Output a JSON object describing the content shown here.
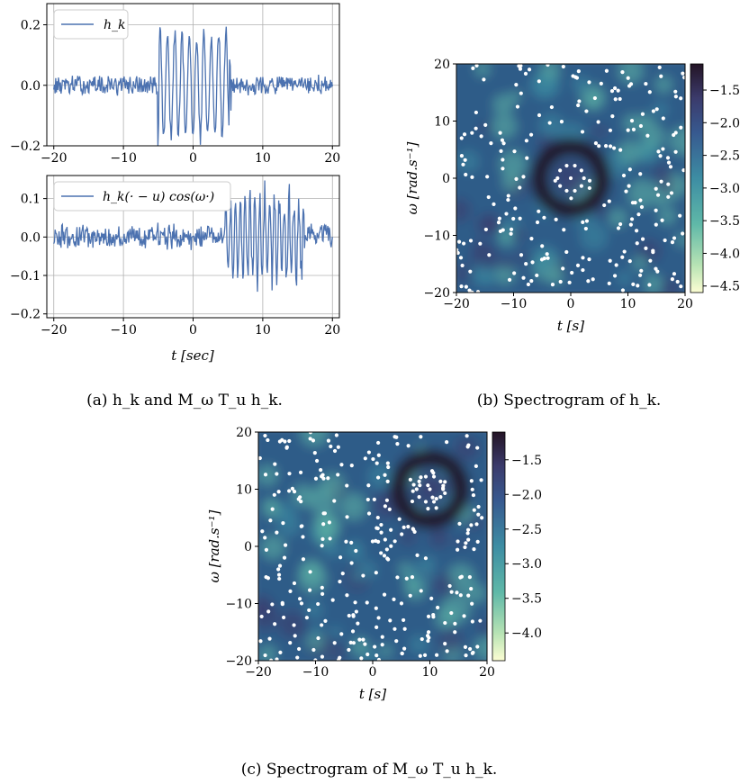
{
  "chart_data": [
    {
      "id": "a_top",
      "type": "line",
      "legend": "h_k",
      "legend_placement": "top-left",
      "series": [
        {
          "name": "h_k",
          "color": "#4c72b0"
        }
      ],
      "xlim": [
        -21,
        21
      ],
      "ylim": [
        -0.2,
        0.27
      ],
      "xticks": [
        -20,
        -10,
        0,
        10,
        20
      ],
      "yticks": [
        -0.2,
        0.0,
        0.2
      ],
      "ytick_labels": [
        "−0.2",
        "0.0",
        "0.2"
      ],
      "grid": true,
      "signal": {
        "noise_amplitude": 0.025,
        "wave_start": -5,
        "wave_end": 5.5,
        "wave_amplitude": 0.17,
        "wave_period": 1.05,
        "spike_left": -5.0,
        "spike_right": 5.3
      }
    },
    {
      "id": "a_bottom",
      "type": "line",
      "legend": "h_k(· − u) cos(ω·)",
      "legend_placement": "top-left",
      "series": [
        {
          "name": "h_k(· − u) cos(ω·)",
          "color": "#4c72b0"
        }
      ],
      "xlim": [
        -21,
        21
      ],
      "ylim": [
        -0.21,
        0.16
      ],
      "xticks": [
        -20,
        -10,
        0,
        10,
        20
      ],
      "yticks": [
        -0.2,
        -0.1,
        0.0,
        0.1
      ],
      "ytick_labels": [
        "−0.2",
        "−0.1",
        "0.0",
        "0.1"
      ],
      "xlabel": "t [sec]",
      "grid": true,
      "signal": {
        "noise_amplitude": 0.025,
        "wave_start": 4.5,
        "wave_end": 16,
        "wave_amplitude": 0.13,
        "wave_period": 0.7
      }
    },
    {
      "id": "b",
      "type": "heatmap",
      "title": "",
      "xlim": [
        -20,
        20
      ],
      "ylim": [
        -20,
        20
      ],
      "xticks": [
        -20,
        -10,
        0,
        10,
        20
      ],
      "yticks": [
        -20,
        -10,
        0,
        10,
        20
      ],
      "xlabel": "t [s]",
      "ylabel": "ω [rad.s⁻¹]",
      "colorbar": {
        "ticks": [
          -1.5,
          -2.0,
          -2.5,
          -3.0,
          -3.5,
          -4.0,
          -4.5
        ],
        "labels": [
          "−1.5",
          "−2.0",
          "−2.5",
          "−3.0",
          "−3.5",
          "−4.0",
          "−4.5"
        ],
        "range": [
          -4.6,
          -1.1
        ]
      },
      "ring": {
        "center": [
          0,
          0
        ],
        "radius": 5.5
      },
      "zeros": {
        "count": 230,
        "seed": 11
      }
    },
    {
      "id": "c",
      "type": "heatmap",
      "title": "",
      "xlim": [
        -20,
        20
      ],
      "ylim": [
        -20,
        20
      ],
      "xticks": [
        -20,
        -10,
        0,
        10,
        20
      ],
      "yticks": [
        -20,
        -10,
        0,
        10,
        20
      ],
      "xlabel": "t [s]",
      "ylabel": "ω [rad.s⁻¹]",
      "colorbar": {
        "ticks": [
          -1.5,
          -2.0,
          -2.5,
          -3.0,
          -3.5,
          -4.0
        ],
        "labels": [
          "−1.5",
          "−2.0",
          "−2.5",
          "−3.0",
          "−3.5",
          "−4.0"
        ],
        "range": [
          -4.4,
          -1.1
        ]
      },
      "ring": {
        "center": [
          10,
          10
        ],
        "radius": 5.5
      },
      "zeros": {
        "count": 290,
        "seed": 29
      }
    }
  ],
  "captions": {
    "a": "(a) h_k and M_ω T_u h_k.",
    "b": "(b) Spectrogram of h_k.",
    "c": "(c) Spectrogram of M_ω T_u h_k."
  },
  "colors": {
    "line": "#4c72b0",
    "grid": "#b0b0b0",
    "dark": "#281a2e",
    "mid": "#2e5b88",
    "light": "#fcfdd2"
  }
}
